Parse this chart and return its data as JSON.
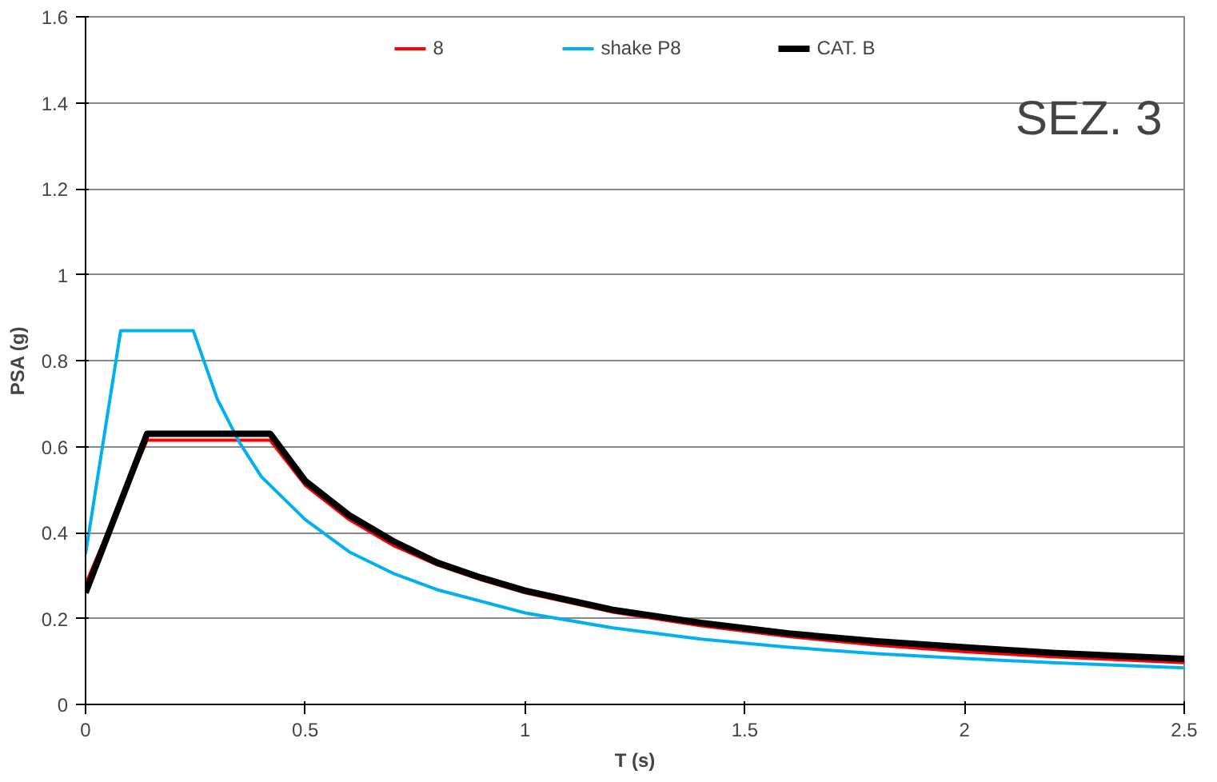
{
  "chart_data": {
    "type": "line",
    "xlabel": "T (s)",
    "ylabel": "PSA (g)",
    "annotations": [
      "SEZ. 3"
    ],
    "xlim": [
      0,
      2.5
    ],
    "xticks": [
      0,
      0.5,
      1,
      1.5,
      2,
      2.5
    ],
    "ylim": [
      0,
      1.6
    ],
    "yticks": [
      0,
      0.2,
      0.4,
      0.6,
      0.8,
      1,
      1.2,
      1.4,
      1.6
    ],
    "grid": "y",
    "legend": "top",
    "marker": "none",
    "line_style": "solid",
    "series": [
      {
        "name": "8",
        "color": "#ff0000",
        "x": [
          0,
          0.14,
          0.42,
          0.5,
          0.6,
          0.7,
          0.8,
          0.9,
          1.0,
          1.2,
          1.4,
          1.6,
          1.8,
          2.0,
          2.2,
          2.5
        ],
        "values": [
          0.28,
          0.615,
          0.615,
          0.51,
          0.43,
          0.37,
          0.325,
          0.29,
          0.26,
          0.215,
          0.183,
          0.158,
          0.138,
          0.123,
          0.111,
          0.097
        ]
      },
      {
        "name": "shake P8",
        "color": "#00b0f0",
        "x": [
          0,
          0.08,
          0.245,
          0.3,
          0.35,
          0.4,
          0.5,
          0.6,
          0.7,
          0.8,
          1.0,
          1.2,
          1.4,
          1.6,
          1.8,
          2.0,
          2.2,
          2.5
        ],
        "values": [
          0.35,
          0.87,
          0.87,
          0.71,
          0.61,
          0.53,
          0.43,
          0.355,
          0.305,
          0.267,
          0.213,
          0.178,
          0.152,
          0.133,
          0.118,
          0.107,
          0.097,
          0.085
        ]
      },
      {
        "name": "CAT. B",
        "color": "#000000",
        "x": [
          0,
          0.14,
          0.42,
          0.5,
          0.6,
          0.7,
          0.8,
          0.9,
          1.0,
          1.2,
          1.4,
          1.6,
          1.8,
          2.0,
          2.2,
          2.5
        ],
        "values": [
          0.26,
          0.63,
          0.63,
          0.52,
          0.44,
          0.38,
          0.33,
          0.295,
          0.265,
          0.22,
          0.19,
          0.165,
          0.147,
          0.133,
          0.12,
          0.106
        ]
      }
    ]
  }
}
